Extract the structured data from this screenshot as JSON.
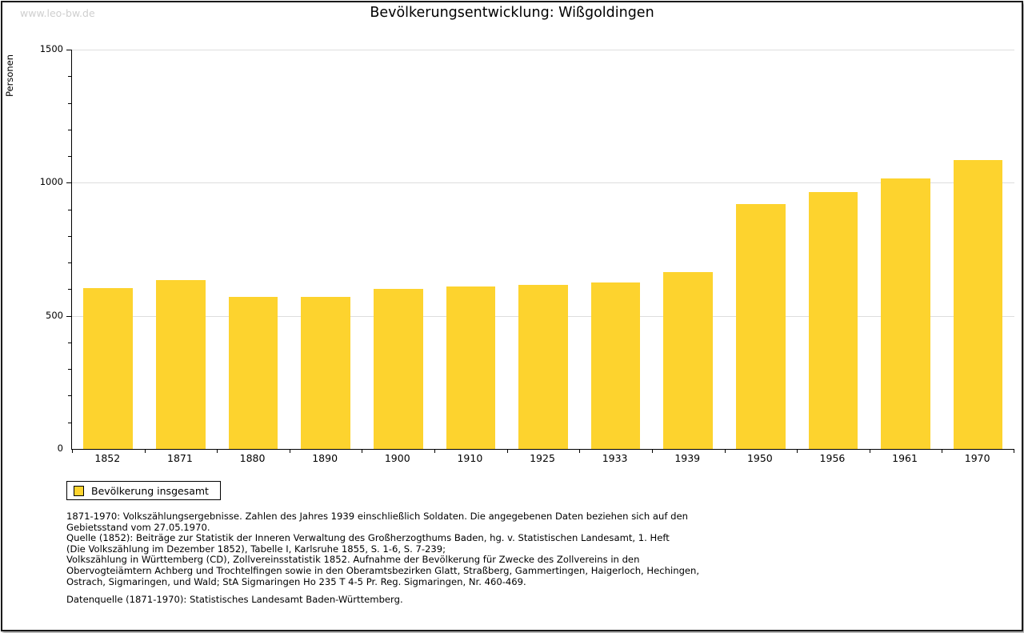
{
  "page": {
    "watermark": "www.leo-bw.de"
  },
  "chart_data": {
    "type": "bar",
    "title": "Bevölkerungsentwicklung: Wißgoldingen",
    "ylabel": "Personen",
    "xlabel": "",
    "categories": [
      "1852",
      "1871",
      "1880",
      "1890",
      "1900",
      "1910",
      "1925",
      "1933",
      "1939",
      "1950",
      "1956",
      "1961",
      "1970"
    ],
    "values": [
      605,
      635,
      570,
      570,
      600,
      610,
      615,
      625,
      665,
      920,
      965,
      1015,
      1085
    ],
    "ylim": [
      0,
      1500
    ],
    "yticks": [
      0,
      500,
      1000,
      1500
    ],
    "minor_tick_step": 100,
    "grid": true,
    "gridline_values": [
      500,
      1000,
      1500
    ],
    "legend_position": "bottom-left",
    "bar_color": "#fdd32e",
    "legend": {
      "label": "Bevölkerung insgesamt"
    }
  },
  "footnotes": {
    "lines": [
      "1871-1970: Volkszählungsergebnisse. Zahlen des Jahres 1939 einschließlich Soldaten. Die angegebenen Daten beziehen sich auf den",
      "Gebietsstand vom 27.05.1970.",
      "Quelle (1852): Beiträge zur Statistik der Inneren Verwaltung des Großherzogthums Baden, hg. v. Statistischen Landesamt, 1. Heft",
      "(Die Volkszählung im Dezember 1852), Tabelle I, Karlsruhe 1855, S. 1-6, S. 7-239;",
      "Volkszählung in Württemberg (CD), Zollvereinsstatistik 1852. Aufnahme der Bevölkerung für Zwecke des Zollvereins in den",
      "Obervogteiämtern Achberg und Trochtelfingen sowie in den Oberamtsbezirken Glatt, Straßberg, Gammertingen, Haigerloch, Hechingen,",
      "Ostrach, Sigmaringen, und Wald; StA Sigmaringen Ho 235 T 4-5 Pr. Reg. Sigmaringen, Nr. 460-469."
    ],
    "datasource": "Datenquelle (1871-1970): Statistisches Landesamt Baden-Württemberg."
  }
}
